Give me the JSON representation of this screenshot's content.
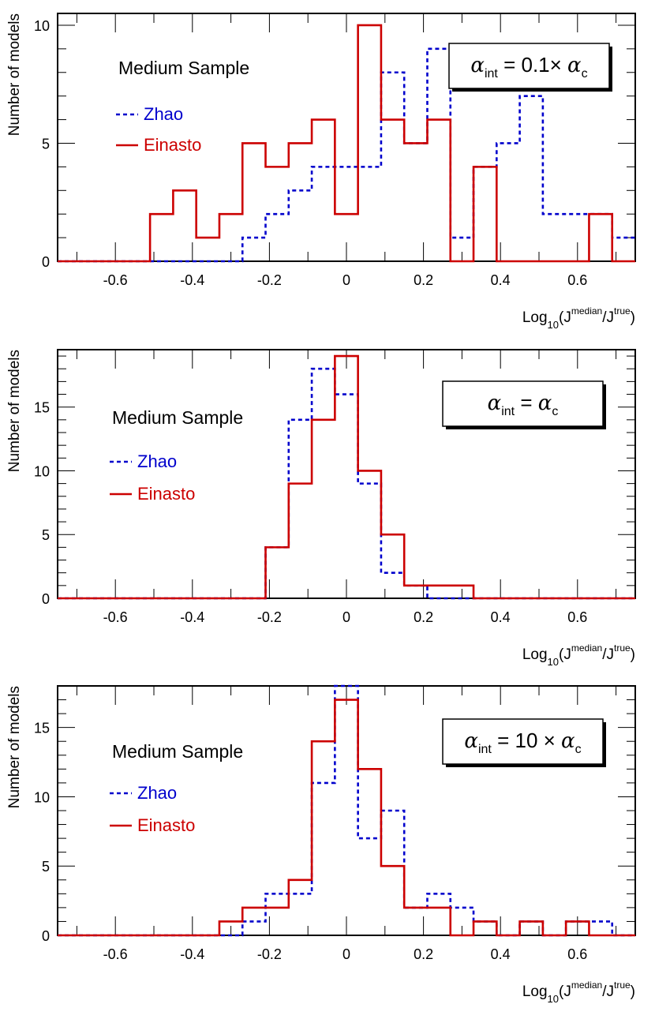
{
  "chart_data": [
    {
      "type": "histogram",
      "x_range": [
        -0.75,
        0.75
      ],
      "y_range": [
        0,
        10.5
      ],
      "y_ticks": [
        0,
        5,
        10
      ],
      "x_ticks": [
        -0.6,
        -0.4,
        -0.2,
        0,
        0.2,
        0.4,
        0.6
      ],
      "x_tick_labels": [
        "-0.6",
        "-0.4",
        "-0.2",
        "0",
        "0.2",
        "0.4",
        "0.6"
      ],
      "bin_edges_start": -0.75,
      "bin_width": 0.06,
      "ylabel": "Number of models",
      "xlabel": {
        "base": "Log",
        "sub": "10",
        "open": "(J",
        "sup1": "median",
        "mid": "/J",
        "sup2": "true",
        "close": ")"
      },
      "annotation": "Medium Sample",
      "box": {
        "alpha1": "α",
        "sub1": "int",
        "rhs": " = 0.1× ",
        "alpha2": "α",
        "sub2": "c"
      },
      "series": [
        {
          "name": "Zhao",
          "color": "#0000cc",
          "style": "dashed",
          "values": [
            0,
            0,
            0,
            0,
            0,
            0,
            0,
            0,
            1,
            2,
            3,
            4,
            4,
            4,
            8,
            5,
            9,
            1,
            4,
            5,
            7,
            2,
            2,
            2,
            1
          ]
        },
        {
          "name": "Einasto",
          "color": "#cc0000",
          "style": "solid",
          "values": [
            0,
            0,
            0,
            0,
            2,
            3,
            1,
            2,
            5,
            4,
            5,
            6,
            2,
            10,
            6,
            5,
            6,
            0,
            4,
            0,
            0,
            0,
            0,
            2,
            0
          ]
        }
      ]
    },
    {
      "type": "histogram",
      "x_range": [
        -0.75,
        0.75
      ],
      "y_range": [
        0,
        19.5
      ],
      "y_ticks": [
        0,
        5,
        10,
        15
      ],
      "x_ticks": [
        -0.6,
        -0.4,
        -0.2,
        0,
        0.2,
        0.4,
        0.6
      ],
      "x_tick_labels": [
        "-0.6",
        "-0.4",
        "-0.2",
        "0",
        "0.2",
        "0.4",
        "0.6"
      ],
      "bin_edges_start": -0.75,
      "bin_width": 0.06,
      "ylabel": "Number of models",
      "xlabel": {
        "base": "Log",
        "sub": "10",
        "open": "(J",
        "sup1": "median",
        "mid": "/J",
        "sup2": "true",
        "close": ")"
      },
      "annotation": "Medium Sample",
      "box": {
        "alpha1": "α",
        "sub1": "int",
        "rhs": " = ",
        "alpha2": "α",
        "sub2": "c"
      },
      "series": [
        {
          "name": "Zhao",
          "color": "#0000cc",
          "style": "dashed",
          "values": [
            0,
            0,
            0,
            0,
            0,
            0,
            0,
            0,
            0,
            4,
            14,
            18,
            16,
            9,
            2,
            1,
            0,
            0,
            0,
            0,
            0,
            0,
            0,
            0,
            0
          ]
        },
        {
          "name": "Einasto",
          "color": "#cc0000",
          "style": "solid",
          "values": [
            0,
            0,
            0,
            0,
            0,
            0,
            0,
            0,
            0,
            4,
            9,
            14,
            19,
            10,
            5,
            1,
            1,
            1,
            0,
            0,
            0,
            0,
            0,
            0,
            0
          ]
        }
      ]
    },
    {
      "type": "histogram",
      "x_range": [
        -0.75,
        0.75
      ],
      "y_range": [
        0,
        18
      ],
      "y_ticks": [
        0,
        5,
        10,
        15
      ],
      "x_ticks": [
        -0.6,
        -0.4,
        -0.2,
        0,
        0.2,
        0.4,
        0.6
      ],
      "x_tick_labels": [
        "-0.6",
        "-0.4",
        "-0.2",
        "0",
        "0.2",
        "0.4",
        "0.6"
      ],
      "bin_edges_start": -0.75,
      "bin_width": 0.06,
      "ylabel": "Number of models",
      "xlabel": {
        "base": "Log",
        "sub": "10",
        "open": "(J",
        "sup1": "median",
        "mid": "/J",
        "sup2": "true",
        "close": ")"
      },
      "annotation": "Medium Sample",
      "box": {
        "alpha1": "α",
        "sub1": "int",
        "rhs": " = 10 × ",
        "alpha2": "α",
        "sub2": "c"
      },
      "series": [
        {
          "name": "Zhao",
          "color": "#0000cc",
          "style": "dashed",
          "values": [
            0,
            0,
            0,
            0,
            0,
            0,
            0,
            0,
            1,
            3,
            3,
            11,
            18,
            7,
            9,
            2,
            3,
            2,
            1,
            0,
            1,
            0,
            1,
            1,
            0
          ]
        },
        {
          "name": "Einasto",
          "color": "#cc0000",
          "style": "solid",
          "values": [
            0,
            0,
            0,
            0,
            0,
            0,
            0,
            1,
            2,
            2,
            4,
            14,
            17,
            12,
            5,
            2,
            2,
            0,
            1,
            0,
            1,
            0,
            1,
            0,
            0
          ]
        }
      ]
    }
  ]
}
